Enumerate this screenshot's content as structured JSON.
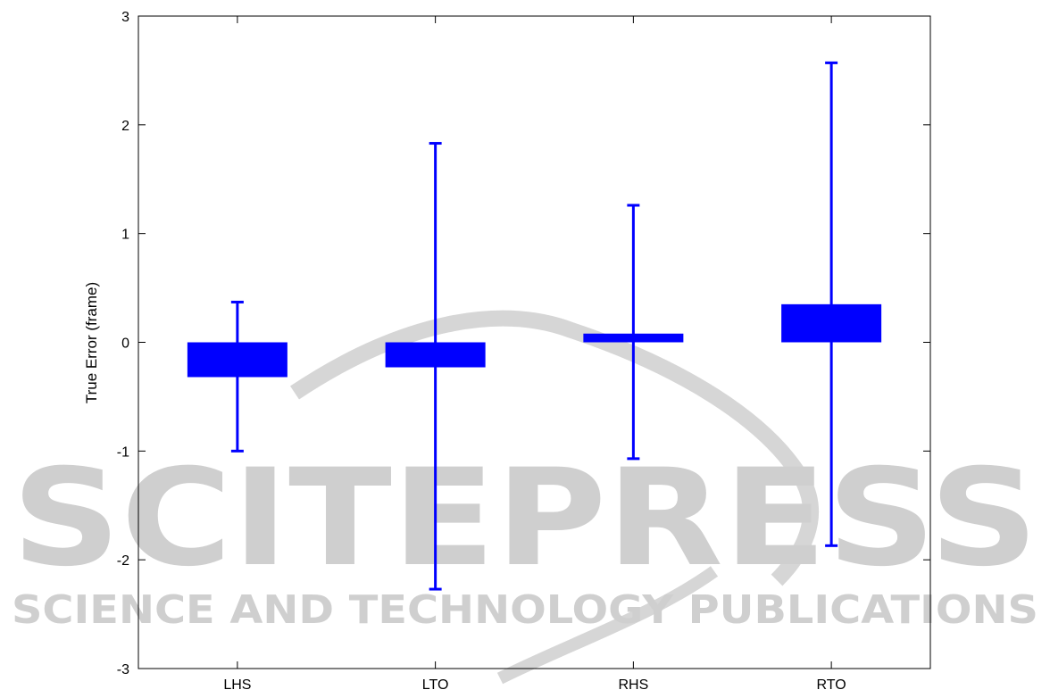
{
  "watermark": {
    "title": "SCITEPRESS",
    "subtitle": "SCIENCE AND TECHNOLOGY PUBLICATIONS"
  },
  "colors": {
    "series": "#0000ff",
    "axis": "#000000",
    "watermark": "#cfcfcf"
  },
  "chart_data": {
    "type": "bar",
    "title": "",
    "xlabel": "",
    "ylabel": "True Error (frame)",
    "ylim": [
      -3,
      3
    ],
    "yticks": [
      -3,
      -2,
      -1,
      0,
      1,
      2,
      3
    ],
    "grid": false,
    "categories": [
      "LHS",
      "LTO",
      "RHS",
      "RTO"
    ],
    "series": [
      {
        "values": [
          -0.32,
          -0.23,
          0.08,
          0.35
        ],
        "whisker_low": [
          -1.0,
          -2.27,
          -1.07,
          -1.87
        ],
        "whisker_high": [
          0.37,
          1.83,
          1.26,
          2.57
        ]
      }
    ]
  }
}
